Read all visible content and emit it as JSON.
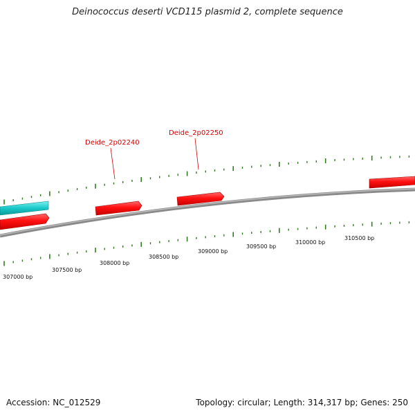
{
  "title": "Deinococcus deserti VCD115 plasmid 2, complete sequence",
  "footer": {
    "accession": "Accession: NC_012529",
    "summary": "Topology: circular; Length: 314,317 bp; Genes: 250"
  },
  "gene_labels": [
    "Deide_2p02240",
    "Deide_2p02250"
  ],
  "bp_labels": [
    "307000 bp",
    "307500 bp",
    "308000 bp",
    "308500 bp",
    "309000 bp",
    "309500 bp",
    "310000 bp",
    "310500 bp"
  ],
  "colors": {
    "backbone": "#7a7a7a",
    "forward_gene": "#ff0000",
    "cyan_feature": "#19c8c8",
    "tick": "#2e7d1e",
    "gene_label": "#d00000"
  }
}
